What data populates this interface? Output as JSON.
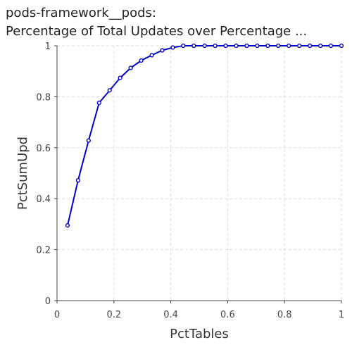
{
  "chart_data": {
    "type": "line",
    "title_lines": [
      "pods-framework__pods:",
      "Percentage of Total Updates over Percentage ..."
    ],
    "xlabel": "PctTables",
    "ylabel": "PctSumUpd",
    "xlim": [
      0,
      1
    ],
    "ylim": [
      0,
      1
    ],
    "x_ticks": [
      0,
      0.2,
      0.4,
      0.6,
      0.8,
      1
    ],
    "x_tick_labels": [
      "0",
      "0.2",
      "0.4",
      "0.6",
      "0.8",
      "1"
    ],
    "y_ticks": [
      0,
      0.2,
      0.4,
      0.6,
      0.8,
      1
    ],
    "y_tick_labels": [
      "0",
      "0.2",
      "0.4",
      "0.6",
      "0.8",
      "1"
    ],
    "grid": true,
    "line_color": "#0000cc",
    "series": [
      {
        "x": [
          0.037,
          0.074,
          0.111,
          0.148,
          0.185,
          0.222,
          0.259,
          0.296,
          0.333,
          0.37,
          0.407,
          0.444,
          0.481,
          0.519,
          0.556,
          0.593,
          0.63,
          0.667,
          0.704,
          0.741,
          0.778,
          0.815,
          0.852,
          0.889,
          0.926,
          0.963,
          1.0
        ],
        "y": [
          0.295,
          0.472,
          0.628,
          0.776,
          0.825,
          0.874,
          0.913,
          0.942,
          0.963,
          0.982,
          0.993,
          1.0,
          1.0,
          1.0,
          1.0,
          1.0,
          1.0,
          1.0,
          1.0,
          1.0,
          1.0,
          1.0,
          1.0,
          1.0,
          1.0,
          1.0,
          1.0
        ]
      }
    ]
  }
}
